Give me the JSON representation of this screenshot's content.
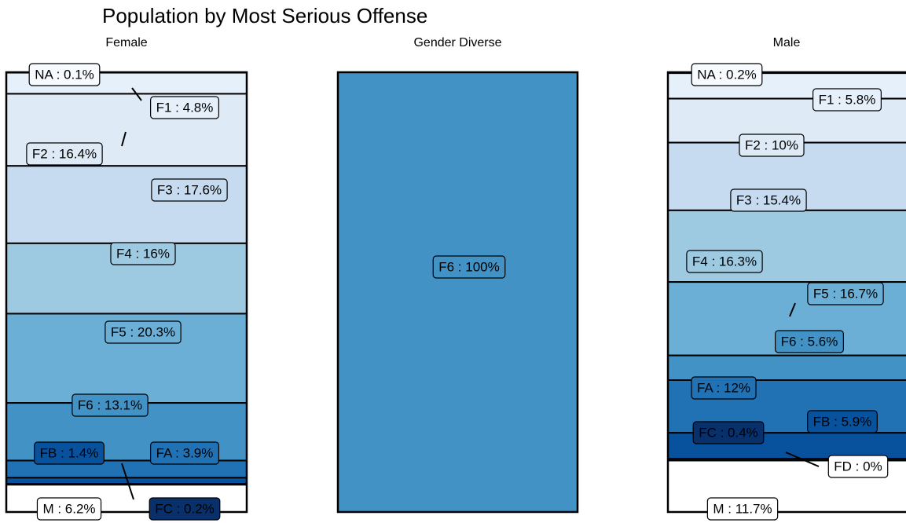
{
  "title": "Population by Most Serious Offense",
  "chart_data": [
    {
      "type": "stacked_bar",
      "title": "Female",
      "categories": [
        "NA",
        "F1",
        "F2",
        "F3",
        "F4",
        "F5",
        "F6",
        "FA",
        "FB",
        "FC",
        "M"
      ],
      "values": [
        0.1,
        4.8,
        16.4,
        17.6,
        16,
        20.3,
        13.1,
        3.9,
        1.4,
        0.2,
        6.2
      ],
      "value_labels": [
        "NA : 0.1%",
        "F1 : 4.8%",
        "F2 : 16.4%",
        "F3 : 17.6%",
        "F4 : 16%",
        "F5 : 20.3%",
        "F6 : 13.1%",
        "FA : 3.9%",
        "FB : 1.4%",
        "FC : 0.2%",
        "M : 6.2%"
      ],
      "colors": [
        "#f7fbff",
        "#e6f0fa",
        "#deebf7",
        "#c6dbef",
        "#9ecae1",
        "#6baed6",
        "#4292c6",
        "#2171b5",
        "#08519c",
        "#08306b",
        "#ffffff"
      ]
    },
    {
      "type": "stacked_bar",
      "title": "Gender Diverse",
      "categories": [
        "F6"
      ],
      "values": [
        100
      ],
      "value_labels": [
        "F6 : 100%"
      ],
      "colors": [
        "#4292c6"
      ]
    },
    {
      "type": "stacked_bar",
      "title": "Male",
      "categories": [
        "NA",
        "F1",
        "F2",
        "F3",
        "F4",
        "F5",
        "F6",
        "FA",
        "FB",
        "FC",
        "FD",
        "M"
      ],
      "values": [
        0.2,
        5.8,
        10,
        15.4,
        16.3,
        16.7,
        5.6,
        12,
        5.9,
        0.4,
        0,
        11.7
      ],
      "value_labels": [
        "NA : 0.2%",
        "F1 : 5.8%",
        "F2 : 10%",
        "F3 : 15.4%",
        "F4 : 16.3%",
        "F5 : 16.7%",
        "F6 : 5.6%",
        "FA : 12%",
        "FB : 5.9%",
        "FC : 0.4%",
        "FD : 0%",
        "M : 11.7%"
      ],
      "colors": [
        "#f7fbff",
        "#e6f0fa",
        "#deebf7",
        "#c6dbef",
        "#9ecae1",
        "#6baed6",
        "#4292c6",
        "#2171b5",
        "#08519c",
        "#08306b",
        "#ffffff",
        "#ffffff"
      ]
    }
  ]
}
